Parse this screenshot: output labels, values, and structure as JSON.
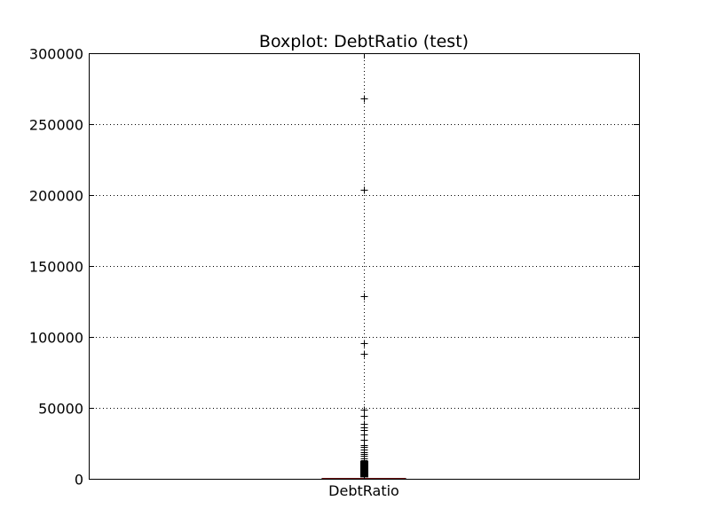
{
  "chart_data": {
    "type": "box",
    "title": "Boxplot: DebtRatio (test)",
    "xlabel": "",
    "ylabel": "",
    "categories": [
      "DebtRatio"
    ],
    "ylim": [
      0,
      300000
    ],
    "yticks": [
      0,
      50000,
      100000,
      150000,
      200000,
      250000,
      300000
    ],
    "grid": true,
    "box": {
      "q1": 0.2,
      "median": 0.4,
      "q3": 0.9,
      "whisker_low": 0,
      "whisker_high": 2
    },
    "outliers": [
      268000,
      203500,
      128500,
      95500,
      88000,
      49000,
      44500,
      38500,
      36000,
      34500,
      31000,
      27500,
      24000,
      22500,
      20500,
      19000,
      17500,
      16000,
      14500,
      13000,
      12000,
      11000,
      10000,
      9000,
      8000,
      7000,
      6000,
      5000,
      4000,
      3000
    ]
  }
}
